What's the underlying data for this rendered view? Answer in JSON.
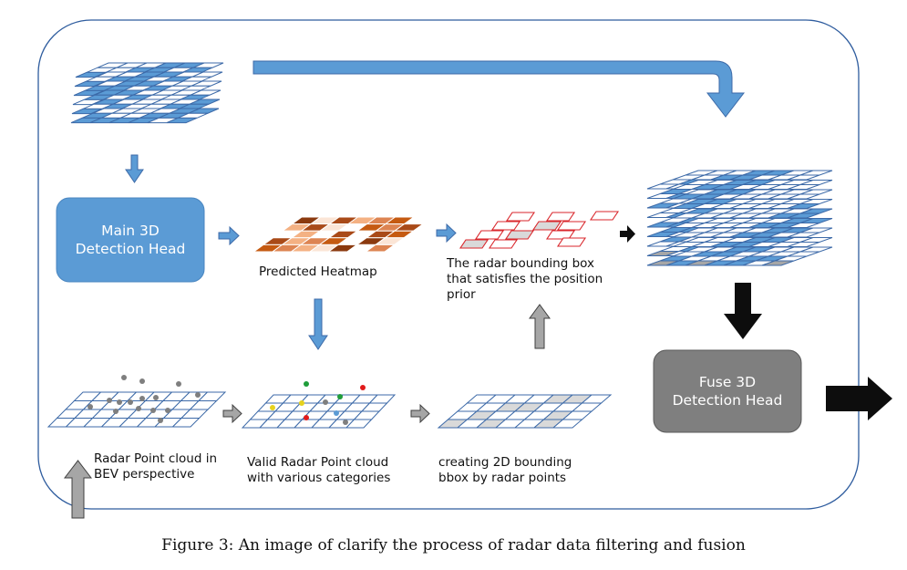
{
  "boxes": {
    "main_head": "Main 3D\nDetection Head",
    "fuse_head": "Fuse 3D\nDetection Head"
  },
  "labels": {
    "predicted_heatmap": "Predicted Heatmap",
    "radar_bbox": "The radar bounding box\nthat satisfies the position\nprior",
    "radar_point_cloud": "Radar Point cloud in\nBEV  perspective",
    "valid_radar": "Valid Radar Point cloud\nwith various categories",
    "creating_bbox": "creating 2D bounding\nbbox by radar points"
  },
  "caption": "Figure 3: An image of clarify the process of radar data filtering and fusion",
  "colors": {
    "blue_fill": "#5b9bd5",
    "blue_line": "#2e5c9e",
    "grid_line": "#3d6aa8",
    "gray_box": "#7f7f7f",
    "red_line": "#d9262b",
    "black_arrow": "#0d0d0d",
    "gray_arrow": "#a6a6a6"
  }
}
